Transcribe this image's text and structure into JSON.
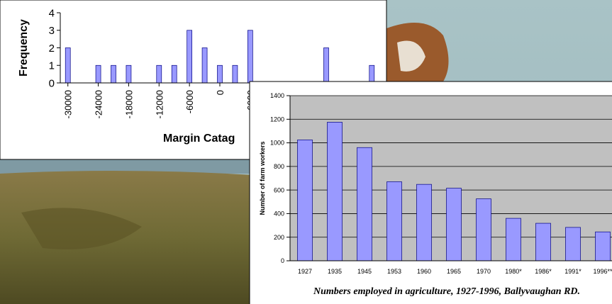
{
  "chart_data": [
    {
      "type": "bar",
      "y_label": "Frequency",
      "x_label": "Margin Catag",
      "x": [
        -30000,
        -24000,
        -21000,
        -18000,
        -12000,
        -9000,
        -6000,
        -3000,
        0,
        3000,
        6000,
        21000,
        30000
      ],
      "values": [
        2,
        1,
        1,
        1,
        1,
        1,
        3,
        2,
        1,
        1,
        3,
        2,
        1
      ],
      "color": "#9999ff",
      "xlim": [
        -31500,
        31500
      ],
      "xticks": [
        -30000,
        -24000,
        -18000,
        -12000,
        -6000,
        0,
        6000
      ],
      "ylim": [
        0,
        4
      ],
      "yticks": [
        0,
        1,
        2,
        3,
        4
      ],
      "grid": false
    },
    {
      "type": "bar",
      "title": "Numbers employed in agriculture, 1927-1996, Ballyvaughan RD.",
      "y_label": "Number of farm workers",
      "categories": [
        "1927",
        "1935",
        "1945",
        "1953",
        "1960",
        "1965",
        "1970",
        "1980*",
        "1986*",
        "1991*",
        "1996**"
      ],
      "values": [
        1025,
        1175,
        960,
        670,
        648,
        615,
        525,
        360,
        318,
        283,
        245
      ],
      "color": "#9999ff",
      "ylim": [
        0,
        1400
      ],
      "yticks": [
        0,
        200,
        400,
        600,
        800,
        1000,
        1200,
        1400
      ],
      "grid": true
    }
  ]
}
